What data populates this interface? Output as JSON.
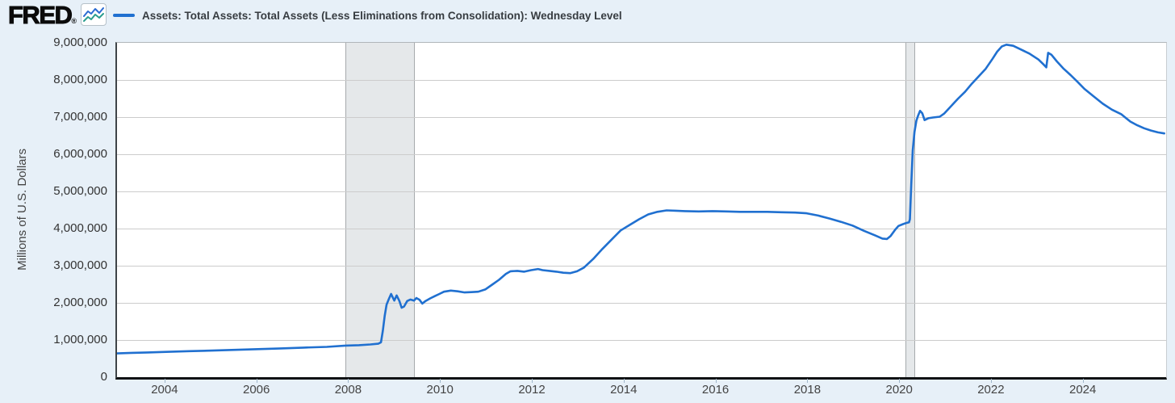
{
  "header": {
    "logo_text": "FRED",
    "registered_mark": "®"
  },
  "legend": {
    "series_label": "Assets: Total Assets: Total Assets (Less Eliminations from Consolidation): Wednesday Level"
  },
  "colors": {
    "series_line": "#2070d0",
    "page_background": "#e7f0f8",
    "plot_background": "#ffffff",
    "gridline": "#cccccc",
    "recession_band": "#e5e8ea",
    "logo_icon_blue": "#2a6bd2",
    "logo_icon_teal": "#2a9d8f"
  },
  "chart_data": {
    "type": "line",
    "title": "Assets: Total Assets: Total Assets (Less Eliminations from Consolidation): Wednesday Level",
    "xlabel": "",
    "ylabel": "Millions of U.S. Dollars",
    "xlim": [
      2002.93,
      2025.78
    ],
    "ylim": [
      0,
      9000000
    ],
    "grid": "horizontal",
    "legend_position": "top",
    "y_ticks": [
      "9,000,000",
      "8,000,000",
      "7,000,000",
      "6,000,000",
      "5,000,000",
      "4,000,000",
      "3,000,000",
      "2,000,000",
      "1,000,000",
      "0"
    ],
    "x_ticks": [
      "2004",
      "2006",
      "2008",
      "2010",
      "2012",
      "2014",
      "2016",
      "2018",
      "2020",
      "2022",
      "2024"
    ],
    "recessions": [
      {
        "start": 2007.91,
        "end": 2009.42
      },
      {
        "start": 2020.1,
        "end": 2020.31
      }
    ],
    "series": [
      {
        "name": "Assets: Total Assets: Total Assets (Less Eliminations from Consolidation): Wednesday Level",
        "color": "#2070d0",
        "points": [
          [
            2002.93,
            640000
          ],
          [
            2003.25,
            655000
          ],
          [
            2003.6,
            665000
          ],
          [
            2004.0,
            680000
          ],
          [
            2004.5,
            700000
          ],
          [
            2005.0,
            715000
          ],
          [
            2005.5,
            735000
          ],
          [
            2006.0,
            755000
          ],
          [
            2006.5,
            775000
          ],
          [
            2007.0,
            795000
          ],
          [
            2007.5,
            815000
          ],
          [
            2007.91,
            850000
          ],
          [
            2008.2,
            860000
          ],
          [
            2008.45,
            880000
          ],
          [
            2008.62,
            900000
          ],
          [
            2008.68,
            940000
          ],
          [
            2008.72,
            1250000
          ],
          [
            2008.76,
            1650000
          ],
          [
            2008.8,
            1950000
          ],
          [
            2008.85,
            2100000
          ],
          [
            2008.9,
            2240000
          ],
          [
            2008.97,
            2060000
          ],
          [
            2009.02,
            2200000
          ],
          [
            2009.08,
            2050000
          ],
          [
            2009.13,
            1870000
          ],
          [
            2009.18,
            1900000
          ],
          [
            2009.25,
            2050000
          ],
          [
            2009.32,
            2090000
          ],
          [
            2009.4,
            2060000
          ],
          [
            2009.45,
            2130000
          ],
          [
            2009.52,
            2080000
          ],
          [
            2009.58,
            1980000
          ],
          [
            2009.65,
            2050000
          ],
          [
            2009.75,
            2120000
          ],
          [
            2009.85,
            2180000
          ],
          [
            2009.95,
            2240000
          ],
          [
            2010.05,
            2300000
          ],
          [
            2010.2,
            2330000
          ],
          [
            2010.35,
            2310000
          ],
          [
            2010.5,
            2280000
          ],
          [
            2010.65,
            2290000
          ],
          [
            2010.8,
            2300000
          ],
          [
            2010.95,
            2360000
          ],
          [
            2011.1,
            2490000
          ],
          [
            2011.25,
            2620000
          ],
          [
            2011.4,
            2780000
          ],
          [
            2011.5,
            2850000
          ],
          [
            2011.65,
            2860000
          ],
          [
            2011.8,
            2840000
          ],
          [
            2011.95,
            2880000
          ],
          [
            2012.1,
            2910000
          ],
          [
            2012.2,
            2880000
          ],
          [
            2012.35,
            2860000
          ],
          [
            2012.5,
            2840000
          ],
          [
            2012.65,
            2810000
          ],
          [
            2012.8,
            2800000
          ],
          [
            2012.95,
            2850000
          ],
          [
            2013.1,
            2950000
          ],
          [
            2013.3,
            3180000
          ],
          [
            2013.5,
            3450000
          ],
          [
            2013.7,
            3700000
          ],
          [
            2013.9,
            3950000
          ],
          [
            2014.1,
            4100000
          ],
          [
            2014.3,
            4250000
          ],
          [
            2014.5,
            4380000
          ],
          [
            2014.7,
            4450000
          ],
          [
            2014.9,
            4490000
          ],
          [
            2015.1,
            4480000
          ],
          [
            2015.3,
            4470000
          ],
          [
            2015.6,
            4460000
          ],
          [
            2015.9,
            4470000
          ],
          [
            2016.2,
            4460000
          ],
          [
            2016.5,
            4450000
          ],
          [
            2016.8,
            4450000
          ],
          [
            2017.1,
            4450000
          ],
          [
            2017.4,
            4440000
          ],
          [
            2017.7,
            4430000
          ],
          [
            2017.95,
            4410000
          ],
          [
            2018.2,
            4350000
          ],
          [
            2018.45,
            4270000
          ],
          [
            2018.7,
            4180000
          ],
          [
            2018.95,
            4080000
          ],
          [
            2019.2,
            3940000
          ],
          [
            2019.45,
            3810000
          ],
          [
            2019.6,
            3730000
          ],
          [
            2019.7,
            3720000
          ],
          [
            2019.78,
            3800000
          ],
          [
            2019.88,
            3970000
          ],
          [
            2019.95,
            4070000
          ],
          [
            2020.05,
            4120000
          ],
          [
            2020.12,
            4150000
          ],
          [
            2020.18,
            4170000
          ],
          [
            2020.2,
            4250000
          ],
          [
            2020.23,
            5200000
          ],
          [
            2020.26,
            6100000
          ],
          [
            2020.3,
            6600000
          ],
          [
            2020.34,
            6900000
          ],
          [
            2020.38,
            7050000
          ],
          [
            2020.42,
            7170000
          ],
          [
            2020.47,
            7100000
          ],
          [
            2020.52,
            6920000
          ],
          [
            2020.6,
            6970000
          ],
          [
            2020.7,
            6990000
          ],
          [
            2020.85,
            7010000
          ],
          [
            2020.95,
            7100000
          ],
          [
            2021.1,
            7300000
          ],
          [
            2021.25,
            7500000
          ],
          [
            2021.4,
            7680000
          ],
          [
            2021.55,
            7900000
          ],
          [
            2021.7,
            8100000
          ],
          [
            2021.85,
            8300000
          ],
          [
            2022.0,
            8570000
          ],
          [
            2022.1,
            8760000
          ],
          [
            2022.2,
            8900000
          ],
          [
            2022.3,
            8950000
          ],
          [
            2022.45,
            8920000
          ],
          [
            2022.6,
            8830000
          ],
          [
            2022.8,
            8710000
          ],
          [
            2023.0,
            8550000
          ],
          [
            2023.1,
            8430000
          ],
          [
            2023.17,
            8340000
          ],
          [
            2023.21,
            8730000
          ],
          [
            2023.28,
            8680000
          ],
          [
            2023.4,
            8500000
          ],
          [
            2023.55,
            8300000
          ],
          [
            2023.7,
            8130000
          ],
          [
            2023.85,
            7950000
          ],
          [
            2024.0,
            7760000
          ],
          [
            2024.2,
            7560000
          ],
          [
            2024.4,
            7360000
          ],
          [
            2024.6,
            7200000
          ],
          [
            2024.8,
            7080000
          ],
          [
            2025.0,
            6880000
          ],
          [
            2025.15,
            6780000
          ],
          [
            2025.3,
            6700000
          ],
          [
            2025.45,
            6640000
          ],
          [
            2025.6,
            6590000
          ],
          [
            2025.74,
            6560000
          ]
        ]
      }
    ]
  }
}
